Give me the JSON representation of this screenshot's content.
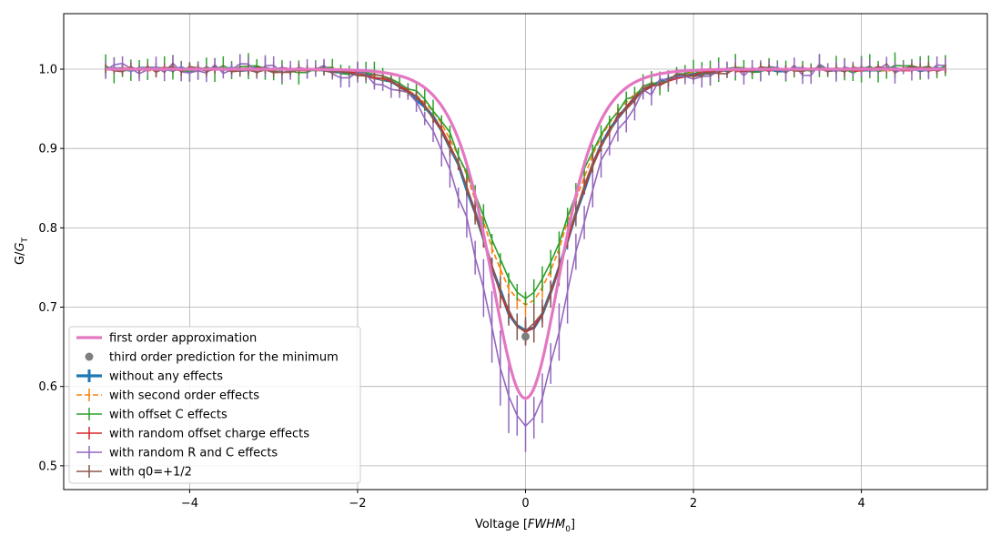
{
  "chart_data": {
    "type": "line",
    "xlabel": "Voltage [",
    "xlabel_math": "FWHM",
    "xlabel_sub": "0",
    "xlabel_end": "]",
    "ylabel": "G/",
    "ylabel_math": "G",
    "ylabel_sub": "T",
    "xlim": [
      -5.5,
      5.5
    ],
    "ylim": [
      0.47,
      1.07
    ],
    "xticks": [
      -4,
      -2,
      0,
      2,
      4
    ],
    "xtick_labels": [
      "−4",
      "−2",
      "0",
      "2",
      "4"
    ],
    "yticks": [
      0.5,
      0.6,
      0.7,
      0.8,
      0.9,
      1.0
    ],
    "ytick_labels": [
      "0.5",
      "0.6",
      "0.7",
      "0.8",
      "0.9",
      "1.0"
    ],
    "grid": true,
    "legend_position": "lower-left",
    "fwhm": 1.0,
    "series": [
      {
        "name": "first order approximation",
        "kind": "curve",
        "color": "#e377c2",
        "dip": 0.415,
        "width_factor": 1.0,
        "line_width": 3.2
      },
      {
        "name": "third order prediction for the minimum",
        "kind": "point",
        "color": "#7f7f7f",
        "x": 0,
        "y": 0.663
      },
      {
        "name": "without any effects",
        "kind": "errorbar",
        "color": "#1f77b4",
        "dip": 0.33,
        "width_factor": 1.3,
        "err": 0.006,
        "line_width": 3.2,
        "dashed": false
      },
      {
        "name": "with second order effects",
        "kind": "errorbar",
        "color": "#ff7f0e",
        "dip": 0.297,
        "width_factor": 1.3,
        "err": 0.006,
        "line_width": 1.6,
        "dashed": true
      },
      {
        "name": "with offset C effects",
        "kind": "errorbar",
        "color": "#2ca02c",
        "dip": 0.285,
        "width_factor": 1.3,
        "err": 0.012,
        "line_width": 1.6,
        "dashed": false
      },
      {
        "name": "with random offset charge effects",
        "kind": "errorbar",
        "color": "#d62728",
        "dip": 0.33,
        "width_factor": 1.3,
        "err": 0.006,
        "line_width": 1.6,
        "dashed": false
      },
      {
        "name": "with random R and C effects",
        "kind": "errorbar",
        "color": "#9467bd",
        "dip": 0.45,
        "width_factor": 1.25,
        "err": 0.02,
        "line_width": 1.6,
        "dashed": false
      },
      {
        "name": "with q0=+1/2",
        "kind": "errorbar",
        "color": "#8c564b",
        "dip": 0.33,
        "width_factor": 1.3,
        "err": 0.01,
        "line_width": 1.6,
        "dashed": false
      }
    ]
  }
}
